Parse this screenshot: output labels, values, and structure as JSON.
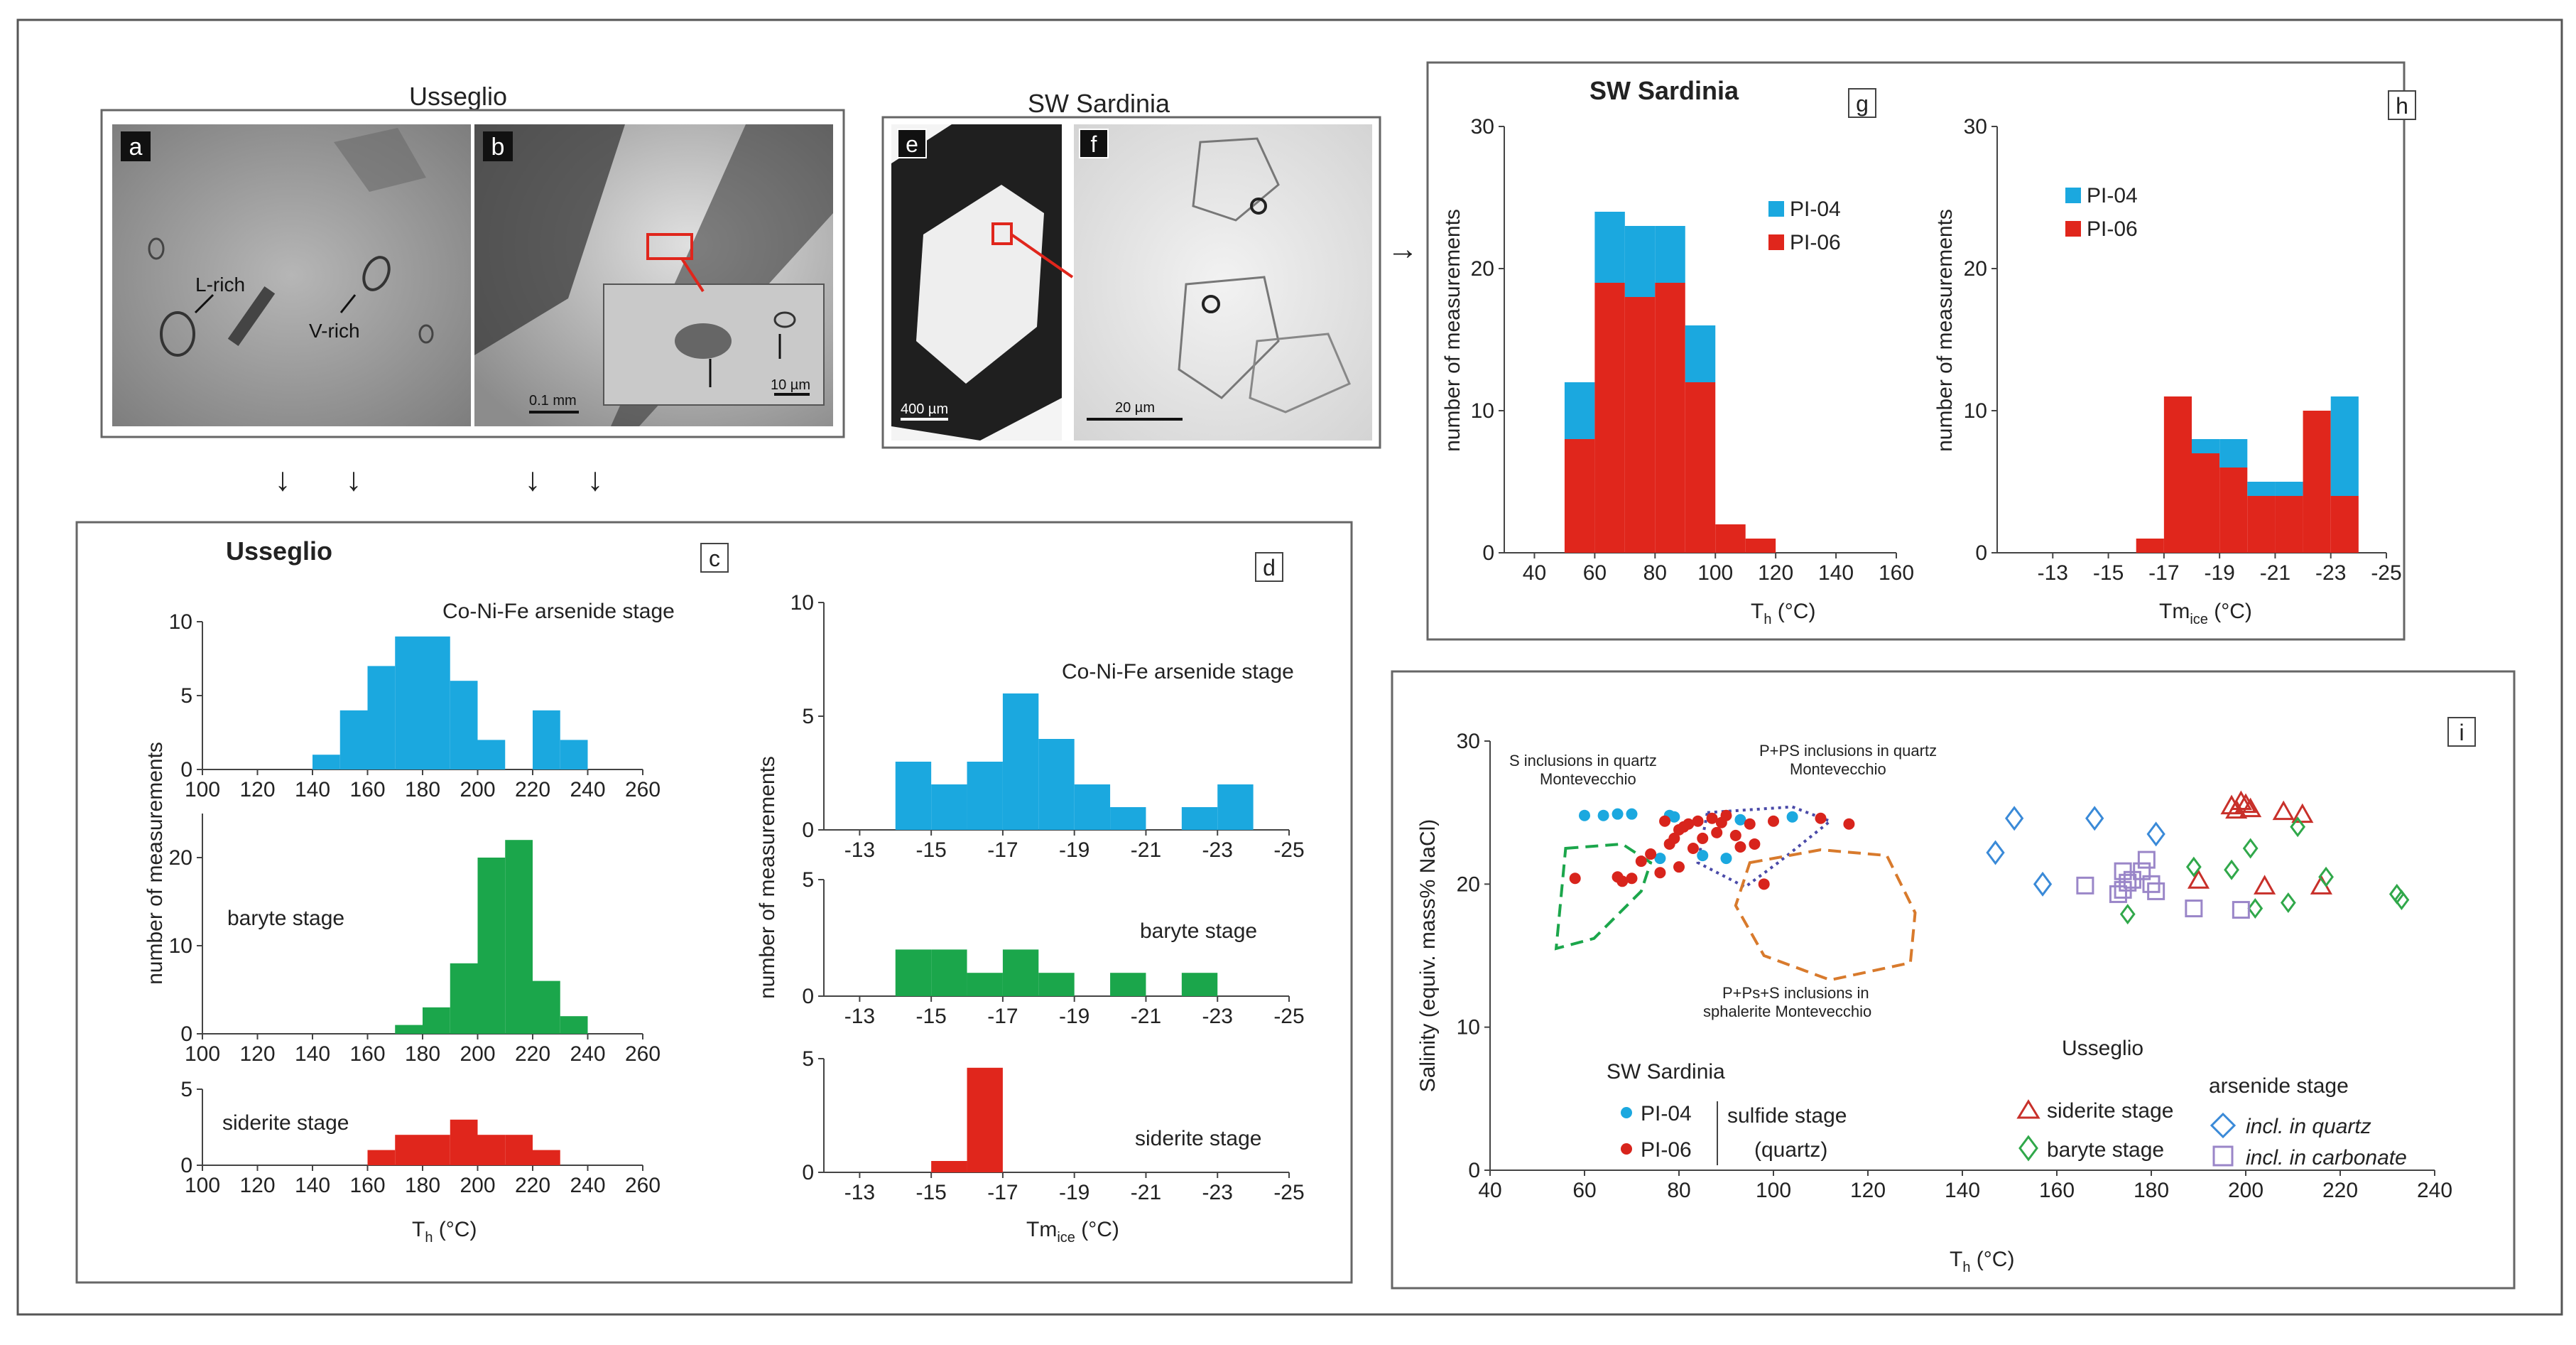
{
  "titles": {
    "usseglio_photos": "Usseglio",
    "sardinia_photos": "SW Sardinia",
    "usseglio_charts": "Usseglio",
    "sardinia_charts": "SW Sardinia"
  },
  "panel_letters": {
    "a": "a",
    "b": "b",
    "c": "c",
    "d": "d",
    "e": "e",
    "f": "f",
    "g": "g",
    "h": "h",
    "i": "i"
  },
  "photo_labels": {
    "l_rich": "L-rich",
    "v_rich": "V-rich",
    "scale_b1": "0.1 mm",
    "scale_b2": "10 µm",
    "scale_e": "400 µm",
    "scale_f": "20 µm"
  },
  "arrow_glyphs": {
    "down": "↓",
    "right": "→"
  },
  "stage_labels": {
    "arsenide": "Co-Ni-Fe arsenide stage",
    "baryte": "baryte stage",
    "siderite": "siderite stage"
  },
  "axis_labels": {
    "count": "number of measurements",
    "th_main": "T",
    "th_sub": "h",
    "th_unit": " (°C)",
    "tm_main": "Tm",
    "tm_sub": "ice",
    "tm_unit": " (°C)",
    "salinity": "Salinity (equiv. mass% NaCl)"
  },
  "legend": {
    "pi04": "PI-04",
    "pi06": "PI-06",
    "sardinia": "SW Sardinia",
    "sulfide1": "sulfide stage",
    "sulfide2": "(quartz)",
    "usseglio": "Usseglio",
    "siderite_stage": "siderite stage",
    "baryte_stage": "baryte stage",
    "arsenide_stage": "arsenide stage",
    "incl_quartz": "incl. in quartz",
    "incl_carbonate": "incl. in carbonate"
  },
  "annotations": {
    "s_line1": "S inclusions in quartz",
    "s_line2": "Montevecchio",
    "pps_line1": "P+PS inclusions in quartz",
    "pps_line2": "Montevecchio",
    "ppss_line1": "P+Ps+S inclusions in",
    "ppss_line2": "sphalerite Montevecchio"
  },
  "colors": {
    "blue": "#1ba8df",
    "green": "#1ba64b",
    "red": "#e0261c",
    "scatter_blue": "#1ba8df",
    "scatter_red": "#d8241c",
    "dashed_green": "#1ba64b",
    "dashed_orange": "#d87a2c",
    "dotted_purple": "#4a4aa8",
    "siderite_marker": "#c8302a",
    "baryte_marker": "#30a84a",
    "quartz_marker": "#3a8ad8",
    "carbonate_marker": "#9a86c8",
    "frame": "#555555",
    "axis": "#444444"
  },
  "chart_data": [
    {
      "id": "c1",
      "type": "bar",
      "panel": "c",
      "bins": [
        140,
        150,
        160,
        170,
        180,
        190,
        200,
        210,
        220,
        230
      ],
      "values": [
        1,
        4,
        7,
        9,
        9,
        6,
        2,
        0,
        4,
        2
      ],
      "xlim": [
        100,
        260
      ],
      "xticks": [
        100,
        120,
        140,
        160,
        180,
        200,
        220,
        240,
        260
      ],
      "ylim": [
        0,
        10
      ],
      "yticks": [
        0,
        5,
        10
      ],
      "color": "blue"
    },
    {
      "id": "c2",
      "type": "bar",
      "panel": "c",
      "bins": [
        170,
        180,
        190,
        200,
        210,
        220,
        230
      ],
      "values": [
        1,
        3,
        8,
        20,
        22,
        6,
        2
      ],
      "xlim": [
        100,
        260
      ],
      "xticks": [
        100,
        120,
        140,
        160,
        180,
        200,
        220,
        240,
        260
      ],
      "ylim": [
        0,
        25
      ],
      "yticks": [
        0,
        10,
        20
      ],
      "color": "green"
    },
    {
      "id": "c3",
      "type": "bar",
      "panel": "c",
      "bins": [
        160,
        170,
        180,
        190,
        200,
        210,
        220
      ],
      "values": [
        1,
        2,
        2,
        3,
        2,
        2,
        1
      ],
      "xlim": [
        100,
        260
      ],
      "xticks": [
        100,
        120,
        140,
        160,
        180,
        200,
        220,
        240,
        260
      ],
      "ylim": [
        0,
        5
      ],
      "yticks": [
        0,
        5
      ],
      "color": "red"
    },
    {
      "id": "d1",
      "type": "bar",
      "panel": "d",
      "bins": [
        -14,
        -15,
        -16,
        -17,
        -18,
        -19,
        -20,
        -21,
        -22,
        -23
      ],
      "values": [
        3,
        2,
        3,
        6,
        4,
        2,
        1,
        0,
        1,
        2
      ],
      "xlim": [
        -12,
        -25
      ],
      "xticks": [
        -13,
        -15,
        -17,
        -19,
        -21,
        -23,
        -25
      ],
      "ylim": [
        0,
        10
      ],
      "yticks": [
        0,
        5,
        10
      ],
      "color": "blue"
    },
    {
      "id": "d2",
      "type": "bar",
      "panel": "d",
      "bins": [
        -14,
        -15,
        -16,
        -17,
        -18,
        -19,
        -20,
        -21,
        -22,
        -23
      ],
      "values": [
        2,
        2,
        1,
        2,
        1,
        0,
        1,
        0,
        1,
        0
      ],
      "xlim": [
        -12,
        -25
      ],
      "xticks": [
        -13,
        -15,
        -17,
        -19,
        -21,
        -23,
        -25
      ],
      "ylim": [
        0,
        5
      ],
      "yticks": [
        0,
        5
      ],
      "color": "green"
    },
    {
      "id": "d3",
      "type": "bar",
      "panel": "d",
      "bins": [
        -15,
        -16
      ],
      "values": [
        0.5,
        4.6
      ],
      "xlim": [
        -12,
        -25
      ],
      "xticks": [
        -13,
        -15,
        -17,
        -19,
        -21,
        -23,
        -25
      ],
      "ylim": [
        0,
        5
      ],
      "yticks": [
        0,
        5
      ],
      "color": "red"
    },
    {
      "id": "g",
      "type": "bar",
      "panel": "g",
      "stacked": true,
      "bins": [
        50,
        60,
        70,
        80,
        90,
        100,
        110
      ],
      "series": [
        {
          "name": "PI-06",
          "values": [
            8,
            19,
            18,
            19,
            12,
            2,
            1
          ],
          "color": "red"
        },
        {
          "name": "PI-04",
          "values": [
            4,
            5,
            5,
            4,
            4,
            0,
            0
          ],
          "color": "blue"
        }
      ],
      "xlim": [
        30,
        160
      ],
      "xticks": [
        40,
        60,
        80,
        100,
        120,
        140,
        160
      ],
      "ylim": [
        0,
        30
      ],
      "yticks": [
        0,
        10,
        20,
        30
      ]
    },
    {
      "id": "h",
      "type": "bar",
      "panel": "h",
      "stacked": true,
      "bins": [
        -16,
        -17,
        -18,
        -19,
        -20,
        -21,
        -22,
        -23
      ],
      "series": [
        {
          "name": "PI-06",
          "values": [
            1,
            11,
            7,
            6,
            4,
            4,
            10,
            4
          ],
          "color": "red"
        },
        {
          "name": "PI-04",
          "values": [
            0,
            0,
            1,
            2,
            1,
            1,
            0,
            7
          ],
          "color": "blue"
        }
      ],
      "xlim": [
        -11,
        -25
      ],
      "xticks": [
        -13,
        -15,
        -17,
        -19,
        -21,
        -23,
        -25
      ],
      "ylim": [
        0,
        30
      ],
      "yticks": [
        0,
        10,
        20,
        30
      ]
    },
    {
      "id": "i",
      "type": "scatter",
      "panel": "i",
      "xlim": [
        40,
        240
      ],
      "xticks": [
        40,
        60,
        80,
        100,
        120,
        140,
        160,
        180,
        200,
        220,
        240
      ],
      "ylim": [
        0,
        30
      ],
      "yticks": [
        0,
        10,
        20,
        30
      ],
      "series": [
        {
          "name": "PI-04",
          "marker": "dot",
          "color": "scatter_blue",
          "points": [
            [
              60,
              24.8
            ],
            [
              64,
              24.8
            ],
            [
              67,
              24.9
            ],
            [
              70,
              24.9
            ],
            [
              78,
              24.8
            ],
            [
              79,
              24.7
            ],
            [
              85,
              22
            ],
            [
              90,
              21.8
            ],
            [
              76,
              21.8
            ],
            [
              93,
              24.5
            ],
            [
              104,
              24.7
            ]
          ]
        },
        {
          "name": "PI-06",
          "marker": "dot",
          "color": "scatter_red",
          "points": [
            [
              58,
              20.4
            ],
            [
              67,
              20.5
            ],
            [
              68,
              20.2
            ],
            [
              70,
              20.4
            ],
            [
              72,
              21.6
            ],
            [
              74,
              22.1
            ],
            [
              77,
              24.4
            ],
            [
              78,
              22.8
            ],
            [
              79,
              23.2
            ],
            [
              80,
              23.8
            ],
            [
              81,
              24
            ],
            [
              82,
              24.2
            ],
            [
              83,
              22.5
            ],
            [
              84,
              24.4
            ],
            [
              85,
              23.2
            ],
            [
              87,
              24.6
            ],
            [
              88,
              23.6
            ],
            [
              89,
              24.3
            ],
            [
              90,
              24.8
            ],
            [
              92,
              23.4
            ],
            [
              93,
              22.6
            ],
            [
              95,
              24.2
            ],
            [
              96,
              22.8
            ],
            [
              98,
              20
            ],
            [
              100,
              24.4
            ],
            [
              110,
              24.6
            ],
            [
              116,
              24.2
            ],
            [
              76,
              20.8
            ],
            [
              80,
              21.2
            ]
          ]
        },
        {
          "name": "siderite stage",
          "marker": "triangle",
          "color": "siderite_marker",
          "points": [
            [
              197,
              25.5
            ],
            [
              198,
              25.2
            ],
            [
              199,
              25.8
            ],
            [
              200,
              25.6
            ],
            [
              201,
              25.3
            ],
            [
              208,
              25.1
            ],
            [
              212,
              24.9
            ],
            [
              190,
              20.3
            ],
            [
              204,
              19.9
            ],
            [
              216,
              19.9
            ]
          ]
        },
        {
          "name": "baryte stage",
          "marker": "diamond",
          "color": "baryte_marker",
          "points": [
            [
              175,
              17.9
            ],
            [
              189,
              21.2
            ],
            [
              197,
              21
            ],
            [
              201,
              22.5
            ],
            [
              202,
              18.3
            ],
            [
              209,
              18.7
            ],
            [
              211,
              24
            ],
            [
              217,
              20.5
            ],
            [
              232,
              19.3
            ],
            [
              233,
              18.9
            ]
          ]
        },
        {
          "name": "incl. in quartz",
          "marker": "diamond-open",
          "color": "quartz_marker",
          "points": [
            [
              147,
              22.2
            ],
            [
              151,
              24.6
            ],
            [
              157,
              20
            ],
            [
              168,
              24.6
            ],
            [
              181,
              23.5
            ]
          ]
        },
        {
          "name": "incl. in carbonate",
          "marker": "square",
          "color": "carbonate_marker",
          "points": [
            [
              166,
              19.9
            ],
            [
              173,
              19.3
            ],
            [
              174,
              20.9
            ],
            [
              175,
              20.1
            ],
            [
              176,
              20.3
            ],
            [
              178,
              20.9
            ],
            [
              179,
              21.7
            ],
            [
              180,
              20
            ],
            [
              181,
              19.5
            ],
            [
              189,
              18.3
            ],
            [
              199,
              18.2
            ],
            [
              174,
              19.6
            ]
          ]
        }
      ]
    }
  ]
}
